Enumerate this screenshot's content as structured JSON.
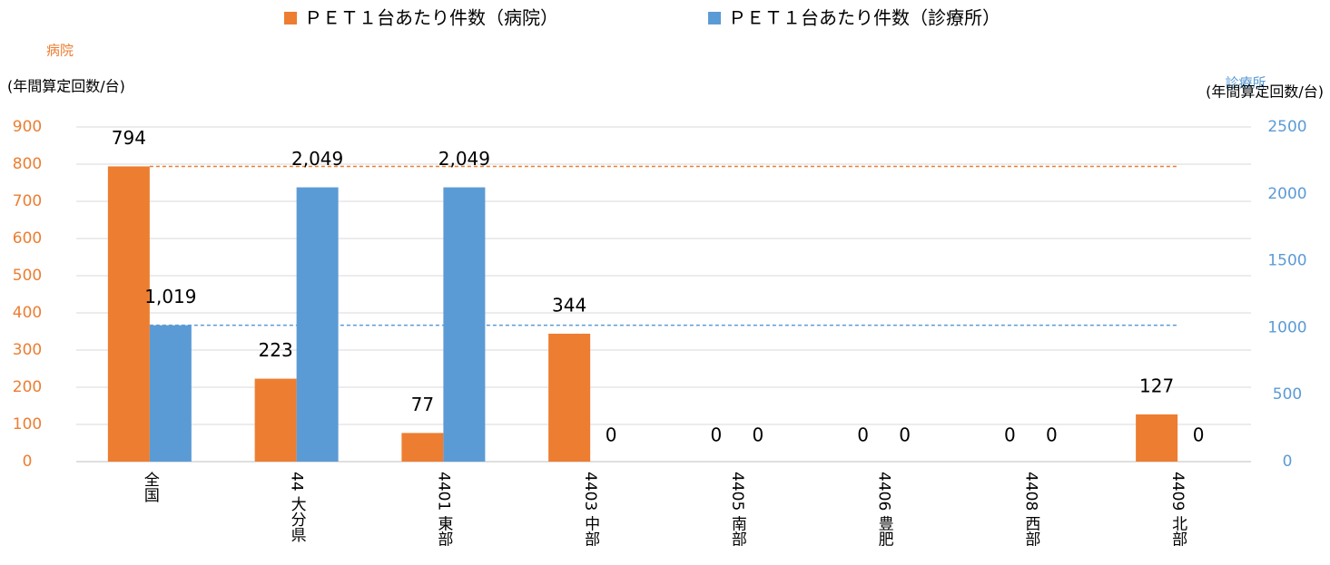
{
  "chart_data": {
    "type": "bar",
    "categories": [
      "全国",
      "44 大分県",
      "4401 東部",
      "4403 中部",
      "4405 南部",
      "4406 豊肥",
      "4408 西部",
      "4409 北部"
    ],
    "series": [
      {
        "name": "ＰＥＴ１台あたり件数（病院）",
        "color": "#ed7d31",
        "values": [
          794,
          223,
          77,
          344,
          0,
          0,
          0,
          127
        ]
      },
      {
        "name": "ＰＥＴ１台あたり件数（診療所）",
        "color": "#5b9bd5",
        "axis": "y2",
        "values": [
          1019,
          2049,
          2049,
          0,
          0,
          0,
          0,
          0
        ],
        "value_labels": [
          "1,019",
          "2,049",
          "2,049",
          "0",
          "0",
          "0",
          "0",
          "0"
        ]
      }
    ],
    "y_axis_title": "病院",
    "y_axis_unit": "(年間算定回数/台)",
    "y2_axis_title": "診療所",
    "y2_axis_unit": "(年間算定回数/台)",
    "ylim": [
      0,
      900
    ],
    "yticks": [
      0,
      100,
      200,
      300,
      400,
      500,
      600,
      700,
      800,
      900
    ],
    "y2lim": [
      0,
      2500
    ],
    "y2ticks": [
      0,
      500,
      1000,
      1500,
      2000,
      2500
    ],
    "grid": true,
    "legend": "top"
  }
}
